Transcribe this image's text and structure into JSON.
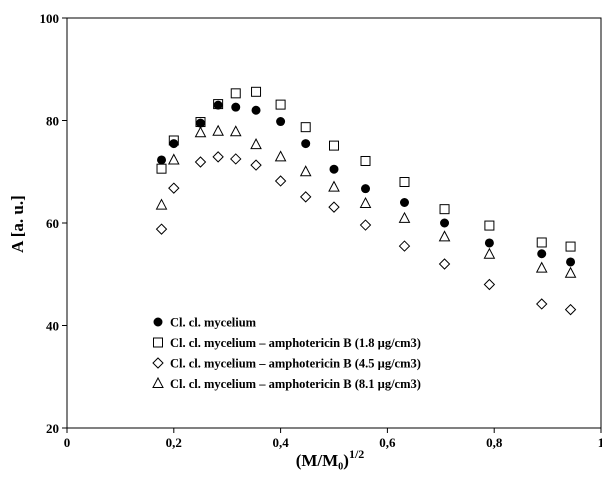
{
  "chart_data": {
    "type": "scatter",
    "xlim": [
      0,
      1
    ],
    "ylim": [
      20,
      100
    ],
    "x_ticks": [
      "0",
      "0,2",
      "0,4",
      "0,6",
      "0,8",
      "1"
    ],
    "y_ticks": [
      "20",
      "40",
      "60",
      "80",
      "100"
    ],
    "x_tick_values": [
      0,
      0.2,
      0.4,
      0.6,
      0.8,
      1
    ],
    "y_tick_values": [
      20,
      40,
      60,
      80,
      100
    ],
    "xlabel": "(M/M₀)",
    "xlabel_superscript": "1/2",
    "ylabel": "A [a. u.]",
    "grid": false,
    "legend_position": "bottom-left",
    "x": [
      0.177,
      0.2,
      0.25,
      0.283,
      0.316,
      0.354,
      0.4,
      0.447,
      0.5,
      0.559,
      0.632,
      0.707,
      0.791,
      0.889,
      0.943
    ],
    "series": [
      {
        "name": "Cl. cl. mycelium",
        "marker": "filled-circle",
        "values": [
          72.3,
          75.5,
          79.5,
          83.0,
          82.6,
          82.0,
          79.8,
          75.5,
          70.5,
          66.7,
          64.0,
          60.0,
          56.1,
          54.0,
          52.4
        ]
      },
      {
        "name": "Cl. cl. mycelium – amphotericin B (1.8 µg/cm3)",
        "marker": "open-square",
        "values": [
          70.6,
          76.1,
          79.7,
          83.2,
          85.3,
          85.6,
          83.1,
          78.7,
          75.1,
          72.1,
          68.0,
          62.7,
          59.5,
          56.2,
          55.4
        ]
      },
      {
        "name": "Cl. cl. mycelium – amphotericin B (4.5 µg/cm3)",
        "marker": "open-diamond",
        "values": [
          58.8,
          66.8,
          71.9,
          72.9,
          72.5,
          71.3,
          68.2,
          65.1,
          63.1,
          59.6,
          55.5,
          52.0,
          48.0,
          44.2,
          43.1
        ]
      },
      {
        "name": "Cl. cl. mycelium – amphotericin B (8.1 µg/cm3)",
        "marker": "open-triangle",
        "values": [
          63.5,
          72.3,
          77.6,
          77.9,
          77.8,
          75.3,
          72.9,
          70.0,
          67.0,
          63.8,
          60.9,
          57.3,
          53.9,
          51.2,
          50.2
        ]
      }
    ]
  }
}
